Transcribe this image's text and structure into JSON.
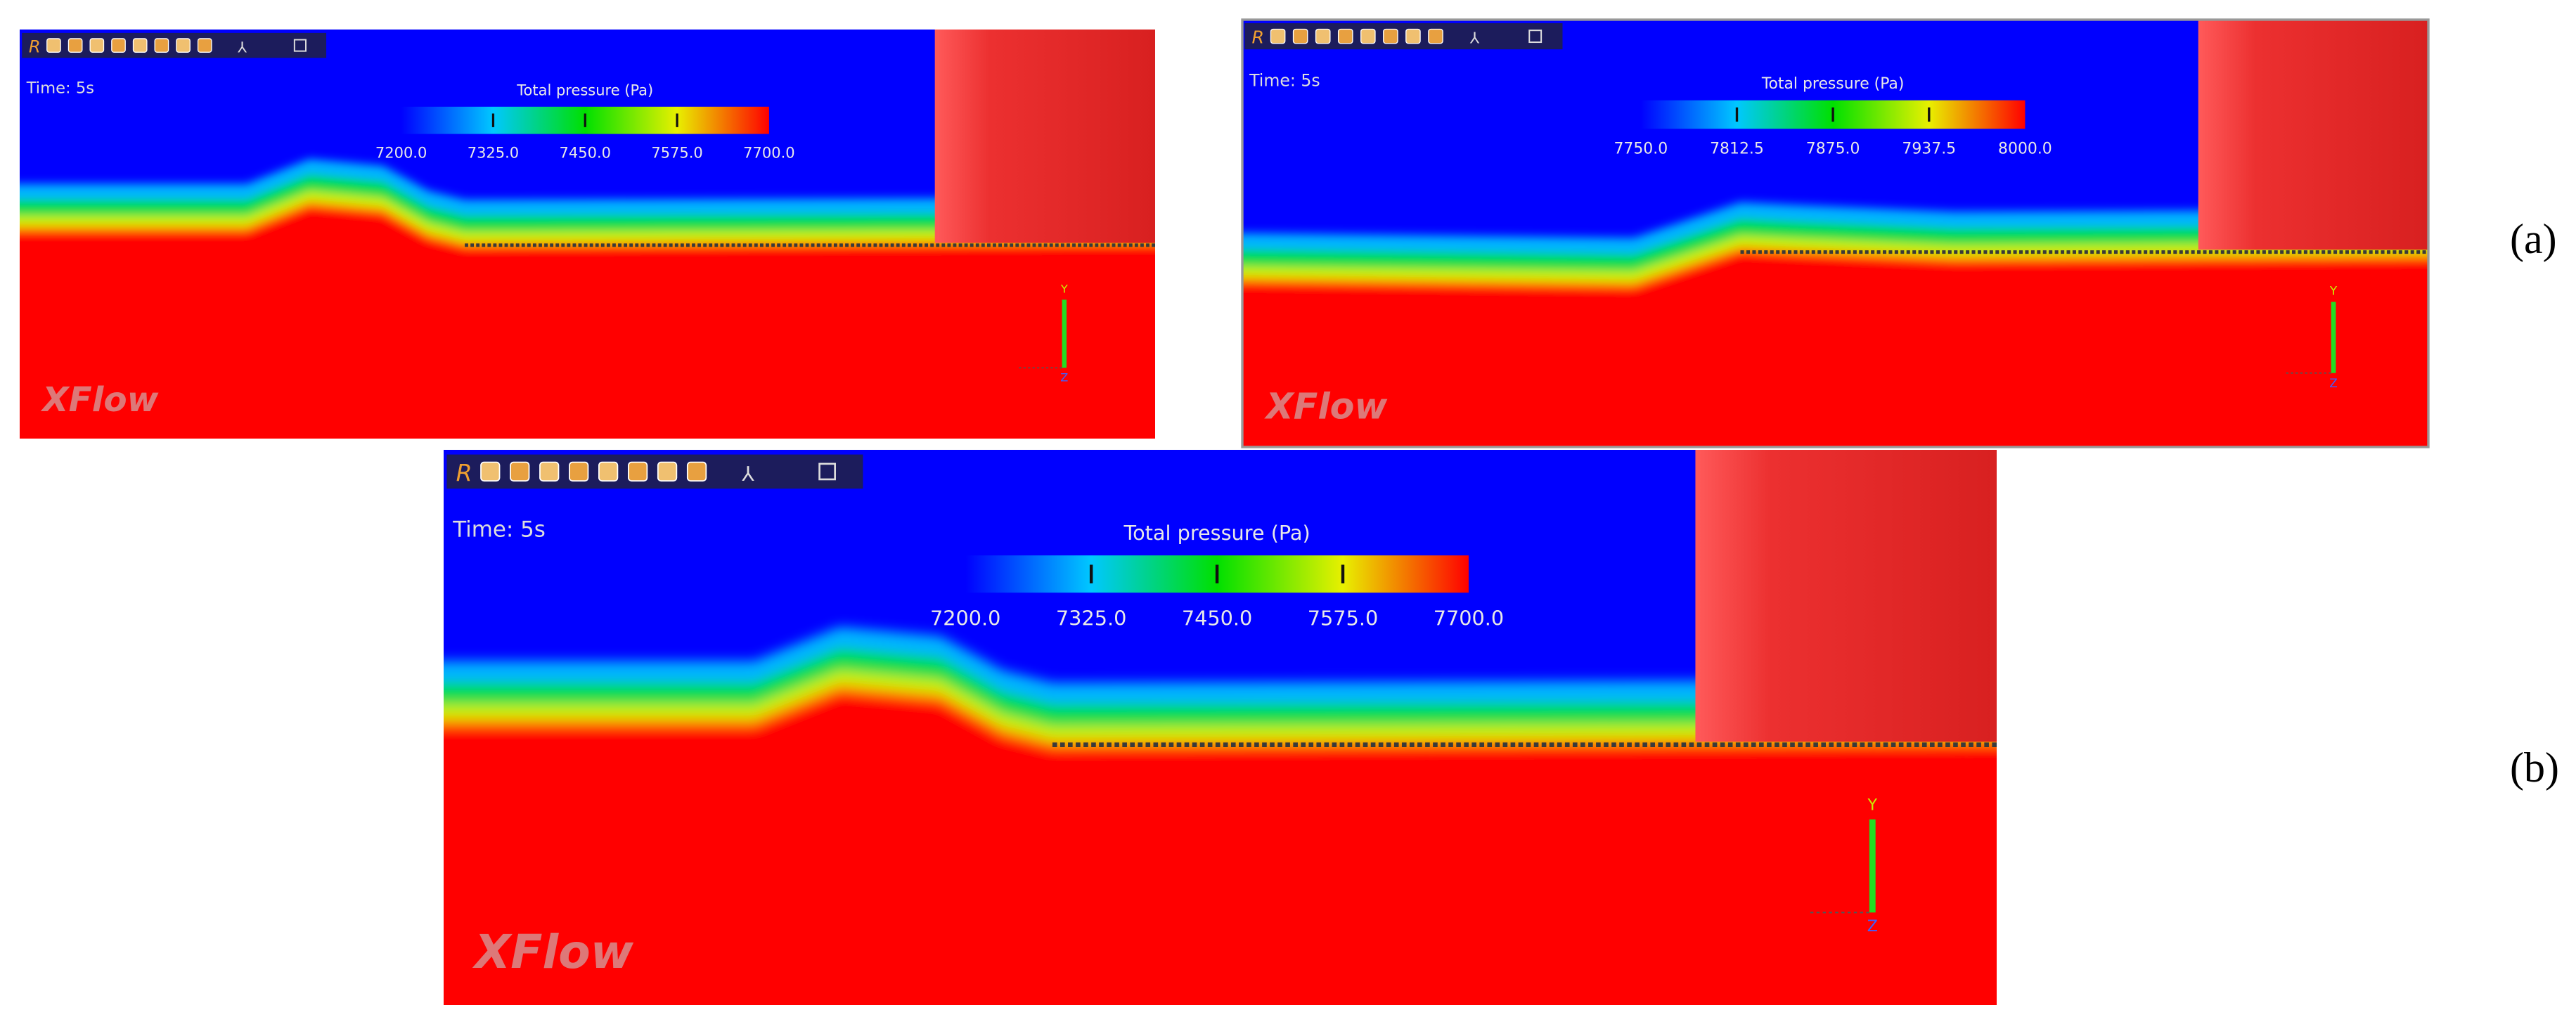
{
  "panels": [
    {
      "toolbar": "R",
      "time": "Time: 5s",
      "colorbar": {
        "title": "Total pressure (Pa)",
        "ticks": [
          "7200.0",
          "7325.0",
          "7450.0",
          "7575.0",
          "7700.0"
        ]
      },
      "watermark": "XFlow",
      "axes": {
        "y": "Y",
        "z": "Z"
      }
    },
    {
      "toolbar": "R",
      "time": "Time: 5s",
      "colorbar": {
        "title": "Total pressure (Pa)",
        "ticks": [
          "7750.0",
          "7812.5",
          "7875.0",
          "7937.5",
          "8000.0"
        ]
      },
      "watermark": "XFlow",
      "axes": {
        "y": "Y",
        "z": "Z"
      }
    },
    {
      "toolbar": "R",
      "time": "Time: 5s",
      "colorbar": {
        "title": "Total pressure (Pa)",
        "ticks": [
          "7200.0",
          "7325.0",
          "7450.0",
          "7575.0",
          "7700.0"
        ]
      },
      "watermark": "XFlow",
      "axes": {
        "y": "Y",
        "z": "Z"
      }
    }
  ],
  "labels": [
    "(a)",
    "(b)"
  ]
}
